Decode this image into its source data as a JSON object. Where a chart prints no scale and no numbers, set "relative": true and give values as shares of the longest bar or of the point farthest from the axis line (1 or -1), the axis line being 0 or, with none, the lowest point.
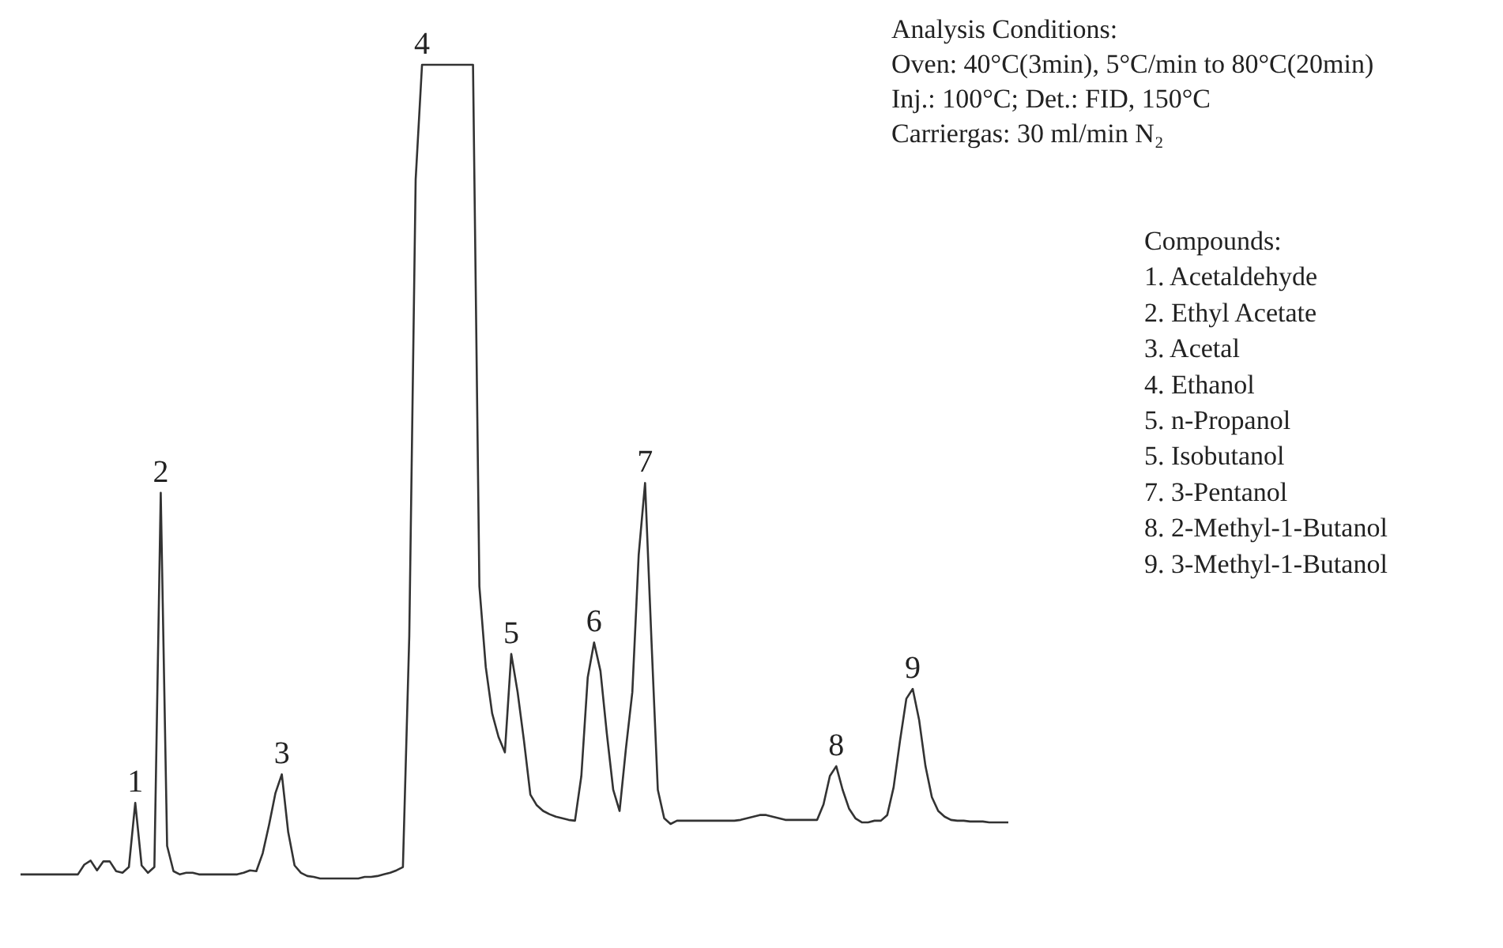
{
  "chart_data": {
    "type": "line",
    "relative": true,
    "categories": [
      null,
      null,
      null,
      null,
      null,
      null,
      null,
      null,
      null,
      null,
      null,
      null,
      null,
      null,
      null,
      null,
      null,
      null,
      null,
      null,
      null,
      null,
      null,
      null,
      null,
      null,
      null,
      null,
      null,
      null,
      null,
      null,
      null,
      null,
      null,
      null,
      null,
      null,
      null,
      null,
      null,
      null,
      null,
      null,
      null,
      null,
      null,
      null,
      null,
      null,
      null,
      null,
      null,
      null,
      null,
      null,
      null,
      null,
      null,
      null,
      null,
      null,
      null,
      null,
      null,
      null,
      null,
      null,
      null,
      null,
      null,
      null,
      null,
      null,
      null,
      null,
      null,
      null,
      null,
      null,
      null,
      null,
      null,
      null,
      null,
      null,
      null,
      null,
      null,
      null,
      null,
      null,
      null,
      null,
      null,
      null,
      null,
      null,
      null,
      null,
      null,
      null,
      null,
      null,
      null,
      null,
      null,
      null,
      null,
      null,
      null,
      null,
      null,
      null,
      null,
      null,
      null,
      null,
      null,
      null,
      null,
      null,
      null,
      null,
      null,
      null,
      null,
      null,
      null,
      null,
      null,
      null,
      null,
      null,
      null,
      null,
      null,
      null,
      null,
      null,
      null,
      null,
      null,
      null,
      null,
      null,
      null,
      null,
      null,
      null,
      null,
      null,
      null,
      null,
      null,
      null
    ],
    "series": [
      {
        "color": "#333333",
        "values": [
          0.005,
          0.005,
          0.005,
          0.005,
          0.005,
          0.005,
          0.005,
          0.005,
          0.005,
          0.005,
          0.017,
          0.022,
          0.01,
          0.021,
          0.021,
          0.009,
          0.007,
          0.014,
          0.093,
          0.016,
          0.007,
          0.014,
          0.474,
          0.04,
          0.009,
          0.005,
          0.007,
          0.007,
          0.005,
          0.005,
          0.005,
          0.005,
          0.005,
          0.005,
          0.005,
          0.007,
          0.01,
          0.009,
          0.031,
          0.066,
          0.105,
          0.128,
          0.057,
          0.016,
          0.007,
          0.003,
          0.002,
          0,
          0,
          0,
          0,
          0,
          0,
          0,
          0.002,
          0.002,
          0.003,
          0.005,
          0.007,
          0.01,
          0.014,
          0.298,
          0.859,
          1,
          1,
          1,
          1,
          1,
          1,
          1,
          1,
          1,
          0.359,
          0.26,
          0.203,
          0.174,
          0.155,
          0.276,
          0.229,
          0.169,
          0.103,
          0.09,
          0.083,
          0.079,
          0.076,
          0.074,
          0.072,
          0.071,
          0.126,
          0.247,
          0.29,
          0.255,
          0.178,
          0.109,
          0.083,
          0.16,
          0.229,
          0.398,
          0.486,
          0.293,
          0.109,
          0.074,
          0.067,
          0.071,
          0.071,
          0.071,
          0.071,
          0.071,
          0.071,
          0.071,
          0.071,
          0.071,
          0.071,
          0.072,
          0.074,
          0.076,
          0.078,
          0.078,
          0.076,
          0.074,
          0.072,
          0.072,
          0.072,
          0.072,
          0.072,
          0.072,
          0.091,
          0.126,
          0.138,
          0.109,
          0.086,
          0.074,
          0.069,
          0.069,
          0.071,
          0.071,
          0.078,
          0.112,
          0.169,
          0.221,
          0.233,
          0.195,
          0.138,
          0.1,
          0.083,
          0.076,
          0.072,
          0.071,
          0.071,
          0.07,
          0.07,
          0.07,
          0.069,
          0.069,
          0.069,
          0.069
        ]
      }
    ],
    "annotations": [
      {
        "text": "1",
        "y": 0.093
      },
      {
        "text": "2",
        "y": 0.474
      },
      {
        "text": "3",
        "y": 0.128
      },
      {
        "text": "4",
        "y": 1
      },
      {
        "text": "5",
        "y": 0.276
      },
      {
        "text": "6",
        "y": 0.29
      },
      {
        "text": "7",
        "y": 0.486
      },
      {
        "text": "8",
        "y": 0.138
      },
      {
        "text": "9",
        "y": 0.233
      },
      "Analysis Conditions:",
      "Oven: 40°C(3min), 5°C/min to 80°C(20min)",
      "Inj.: 100°C; Det.: FID, 150°C",
      "Carriergas: 30 ml/min N₂",
      "Compounds:",
      "1.  Acetaldehyde",
      "2.  Ethyl Acetate",
      "3.  Acetal",
      "4.  Ethanol",
      "5.  n-Propanol",
      "5.  Isobutanol",
      "7.  3-Pentanol",
      "8.  2-Methyl-1-Butanol",
      "9.  3-Methyl-1-Butanol"
    ]
  }
}
